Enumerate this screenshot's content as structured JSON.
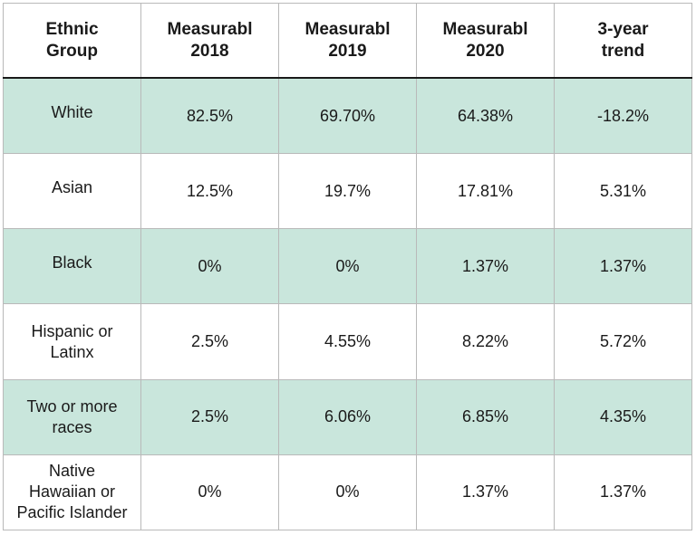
{
  "table": {
    "headers": [
      "Ethnic\nGroup",
      "Measurabl\n2018",
      "Measurabl\n2019",
      "Measurabl\n2020",
      "3-year\ntrend"
    ],
    "header_lines": [
      [
        "Ethnic",
        "Group"
      ],
      [
        "Measurabl",
        "2018"
      ],
      [
        "Measurabl",
        "2019"
      ],
      [
        "Measurabl",
        "2020"
      ],
      [
        "3-year",
        "trend"
      ]
    ],
    "rows": [
      {
        "group_lines": [
          "White"
        ],
        "values": [
          "82.5%",
          "69.70%",
          "64.38%",
          "-18.2%"
        ]
      },
      {
        "group_lines": [
          "Asian"
        ],
        "values": [
          "12.5%",
          "19.7%",
          "17.81%",
          "5.31%"
        ]
      },
      {
        "group_lines": [
          "Black"
        ],
        "values": [
          "0%",
          "0%",
          "1.37%",
          "1.37%"
        ]
      },
      {
        "group_lines": [
          "Hispanic or",
          "Latinx"
        ],
        "values": [
          "2.5%",
          "4.55%",
          "8.22%",
          "5.72%"
        ]
      },
      {
        "group_lines": [
          "Two or more",
          "races"
        ],
        "values": [
          "2.5%",
          "6.06%",
          "6.85%",
          "4.35%"
        ]
      },
      {
        "group_lines": [
          "Native",
          "Hawaiian or",
          "Pacific Islander"
        ],
        "values": [
          "0%",
          "0%",
          "1.37%",
          "1.37%"
        ]
      }
    ]
  },
  "colors": {
    "shaded_row": "#c9e6dc",
    "border": "#b9b9b9",
    "header_rule": "#1a1a1a"
  }
}
